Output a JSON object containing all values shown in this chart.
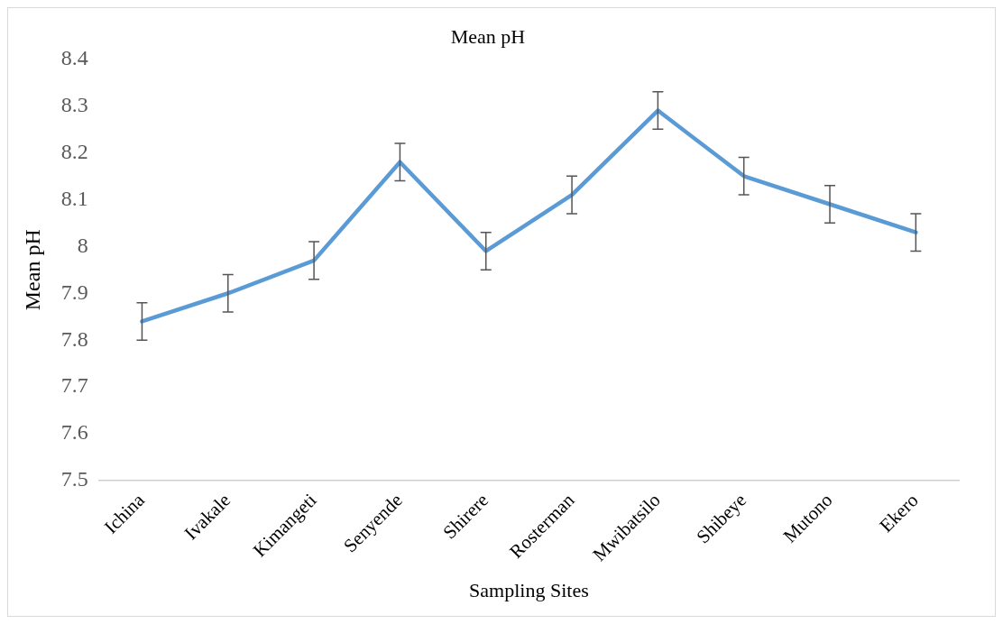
{
  "chart_data": {
    "type": "line",
    "title": "Mean pH",
    "xlabel": "Sampling Sites",
    "ylabel": "Mean pH",
    "categories": [
      "Ichina",
      "Ivakale",
      "Kimangeti",
      "Senyende",
      "Shirere",
      "Rosterman",
      "Mwibatsilo",
      "Shibeye",
      "Mutono",
      "Ekero"
    ],
    "series": [
      {
        "color": "#5b9bd5",
        "values": [
          7.84,
          7.9,
          7.97,
          8.18,
          7.99,
          8.11,
          8.29,
          8.15,
          8.09,
          8.03
        ],
        "errors": [
          0.04,
          0.04,
          0.04,
          0.04,
          0.04,
          0.04,
          0.04,
          0.04,
          0.04,
          0.04
        ]
      }
    ],
    "ylim": [
      7.5,
      8.4
    ],
    "yticks": [
      7.5,
      7.6,
      7.7,
      7.8,
      7.9,
      8,
      8.1,
      8.2,
      8.3,
      8.4
    ],
    "grid": false,
    "legend": false,
    "marker": "none",
    "line_style": "solid"
  }
}
